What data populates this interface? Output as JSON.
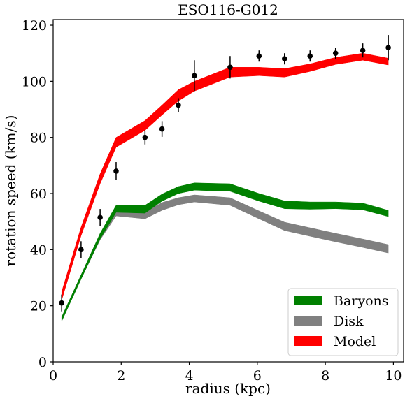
{
  "chart_data": {
    "type": "line",
    "title": "ESO116-G012",
    "xlabel": "radius (kpc)",
    "ylabel": "rotation speed (km/s)",
    "xlim": [
      0,
      10.3
    ],
    "ylim": [
      0,
      122
    ],
    "xticks": [
      0,
      2,
      4,
      6,
      8,
      10
    ],
    "yticks": [
      0,
      20,
      40,
      60,
      80,
      100,
      120
    ],
    "grid": false,
    "legend_position": "bottom-right",
    "x": [
      0.25,
      0.82,
      1.38,
      1.85,
      2.7,
      3.2,
      3.68,
      4.15,
      5.2,
      6.05,
      6.8,
      7.55,
      8.3,
      9.1,
      9.85
    ],
    "series": [
      {
        "name": "Baryons",
        "color": "#008000",
        "band": "low/high",
        "low": [
          14.5,
          29.5,
          43.8,
          53.3,
          53.0,
          57.3,
          60.0,
          61.2,
          60.8,
          57.3,
          54.6,
          54.4,
          54.6,
          54.2,
          51.8
        ],
        "high": [
          16.0,
          31.0,
          45.8,
          55.8,
          55.8,
          59.8,
          62.5,
          63.8,
          63.5,
          60.0,
          57.4,
          57.0,
          57.0,
          56.6,
          54.0
        ]
      },
      {
        "name": "Disk",
        "color": "#808080",
        "band": "low/high",
        "low": [
          14.5,
          29.5,
          43.5,
          52.0,
          51.0,
          54.0,
          56.0,
          57.0,
          55.8,
          51.0,
          46.8,
          44.8,
          42.8,
          40.8,
          38.8
        ],
        "high": [
          16.0,
          31.0,
          45.5,
          54.5,
          53.5,
          56.8,
          58.5,
          59.5,
          58.5,
          53.8,
          49.8,
          47.8,
          45.8,
          43.8,
          41.8
        ]
      },
      {
        "name": "Model",
        "color": "#ff0000",
        "band": "low/high",
        "low": [
          22.0,
          45.0,
          63.5,
          76.5,
          82.5,
          88.0,
          93.0,
          96.5,
          101.5,
          102.0,
          101.5,
          103.5,
          106.0,
          107.5,
          105.8
        ],
        "high": [
          25.0,
          48.0,
          67.0,
          80.0,
          86.0,
          91.5,
          97.0,
          100.0,
          105.0,
          105.0,
          104.5,
          106.2,
          108.5,
          110.0,
          108.2
        ]
      }
    ],
    "observations": {
      "x": [
        0.25,
        0.82,
        1.38,
        1.85,
        2.7,
        3.2,
        3.68,
        4.15,
        5.2,
        6.05,
        6.8,
        7.55,
        8.3,
        9.1,
        9.85
      ],
      "y": [
        21,
        40,
        51.5,
        68,
        80,
        83,
        91.5,
        102,
        105,
        109,
        108,
        109,
        110,
        111,
        112
      ],
      "err": [
        3,
        3,
        3,
        3.2,
        2.5,
        2.8,
        2.5,
        5.5,
        4,
        2,
        2,
        2,
        2,
        2.5,
        4.5
      ],
      "color": "#000000"
    }
  }
}
